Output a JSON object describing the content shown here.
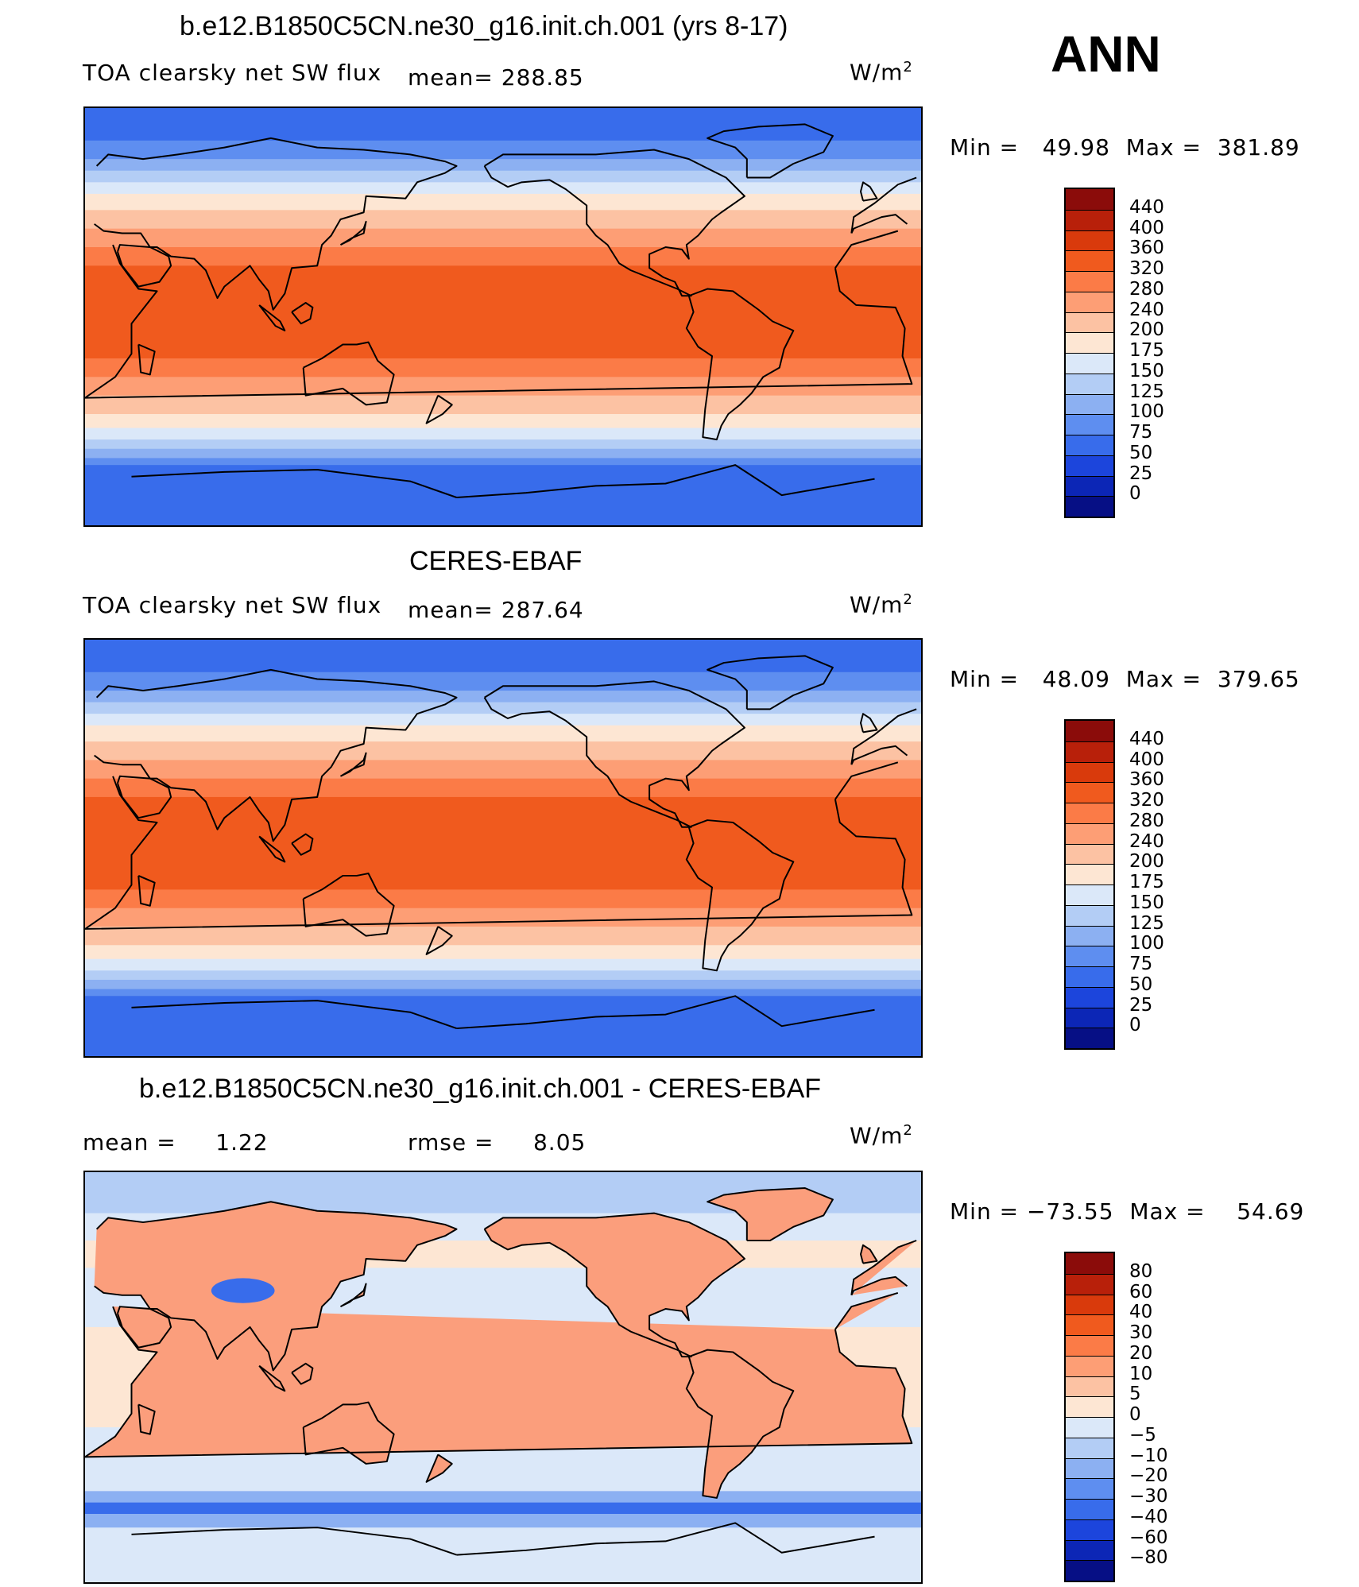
{
  "season": "ANN",
  "panels": [
    {
      "title": "b.e12.B1850C5CN.ne30_g16.init.ch.001 (yrs 8-17)",
      "left_label": "TOA clearsky net SW flux",
      "mean_label": "mean= 288.85",
      "units": "W/m²",
      "minmax": "Min =   49.98  Max =  381.89",
      "levels": [
        "440",
        "400",
        "360",
        "320",
        "280",
        "240",
        "200",
        "175",
        "150",
        "125",
        "100",
        "75",
        "50",
        "25",
        "0"
      ],
      "map_kind": "abs"
    },
    {
      "title": "CERES-EBAF",
      "left_label": "TOA clearsky net SW flux",
      "mean_label": "mean= 287.64",
      "units": "W/m²",
      "minmax": "Min =   48.09  Max =  379.65",
      "levels": [
        "440",
        "400",
        "360",
        "320",
        "280",
        "240",
        "200",
        "175",
        "150",
        "125",
        "100",
        "75",
        "50",
        "25",
        "0"
      ],
      "map_kind": "abs"
    },
    {
      "title": "b.e12.B1850C5CN.ne30_g16.init.ch.001 - CERES-EBAF",
      "left_label": "mean =     1.22",
      "mean_label": "rmse =     8.05",
      "units": "W/m²",
      "minmax": "Min = −73.55  Max =    54.69",
      "levels": [
        "80",
        "60",
        "40",
        "30",
        "20",
        "10",
        "5",
        "0",
        "−5",
        "−10",
        "−20",
        "−30",
        "−40",
        "−60",
        "−80"
      ],
      "map_kind": "diff"
    }
  ],
  "palette": [
    "#8b0c0a",
    "#b8200a",
    "#d93a0c",
    "#f05a1e",
    "#fb7b47",
    "#fd9e75",
    "#fcc2a3",
    "#fde6d3",
    "#dbe8f9",
    "#b3cdf5",
    "#8cb0f2",
    "#5e8ef0",
    "#386ceb",
    "#1c45dc",
    "#0c26b6",
    "#060f85"
  ]
}
